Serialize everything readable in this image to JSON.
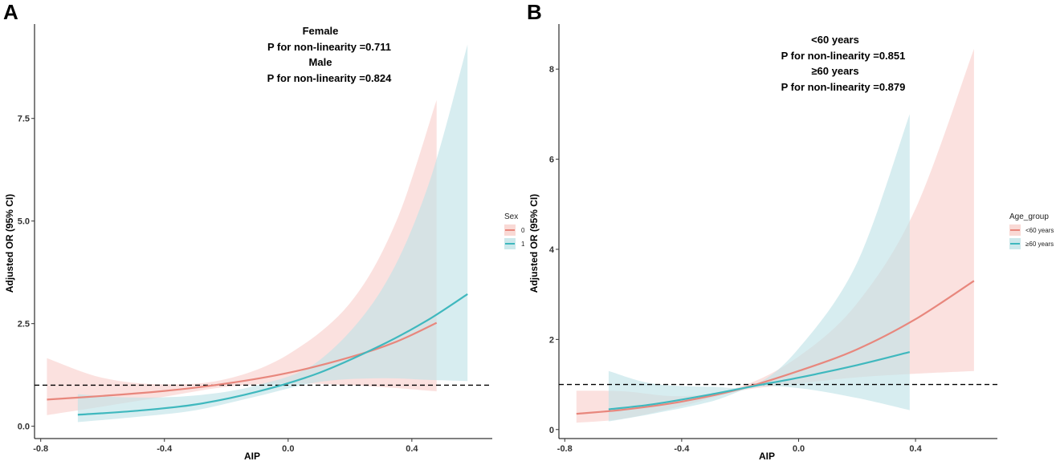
{
  "chart_data": [
    {
      "panel": "A",
      "type": "line",
      "title": "",
      "xlabel": "AIP",
      "ylabel": "Adjusted OR (95% CI)",
      "xlim": [
        -0.82,
        0.66
      ],
      "ylim": [
        -0.3,
        9.8
      ],
      "xticks": [
        -0.8,
        -0.4,
        0.0,
        0.4
      ],
      "xtick_labels": [
        "-0.8",
        "-0.4",
        "0.0",
        "0.4"
      ],
      "yticks": [
        0.0,
        2.5,
        5.0,
        7.5
      ],
      "ytick_labels": [
        "0.0",
        "2.5",
        "5.0",
        "7.5"
      ],
      "reference_line": 1,
      "grid": false,
      "annotations": [
        "Female",
        "P for non-linearity =0.711",
        "Male",
        "P for non-linearity =0.824"
      ],
      "legend": {
        "title": "Sex",
        "position": "right",
        "entries": [
          "0",
          "1"
        ]
      },
      "series": [
        {
          "name": "0",
          "color": "#E8877D",
          "fill": "#F8CFCB",
          "x": [
            -0.78,
            -0.6,
            -0.4,
            -0.2,
            0.0,
            0.2,
            0.35,
            0.48
          ],
          "y": [
            0.65,
            0.74,
            0.86,
            1.04,
            1.3,
            1.68,
            2.06,
            2.52
          ],
          "lower": [
            0.27,
            0.48,
            0.72,
            0.96,
            1.05,
            1.0,
            0.93,
            0.85
          ],
          "upper": [
            1.66,
            1.18,
            1.02,
            1.15,
            1.75,
            3.0,
            5.0,
            7.95
          ]
        },
        {
          "name": "1",
          "color": "#3FB8BE",
          "fill": "#BFE2E6",
          "x": [
            -0.68,
            -0.5,
            -0.3,
            -0.1,
            0.1,
            0.3,
            0.45,
            0.58
          ],
          "y": [
            0.28,
            0.37,
            0.53,
            0.84,
            1.3,
            1.97,
            2.58,
            3.22
          ],
          "lower": [
            0.1,
            0.22,
            0.39,
            0.73,
            1.08,
            1.17,
            1.13,
            1.1
          ],
          "upper": [
            0.78,
            0.7,
            0.75,
            1.0,
            1.6,
            3.3,
            5.8,
            9.3
          ]
        }
      ]
    },
    {
      "panel": "B",
      "type": "line",
      "title": "",
      "xlabel": "AIP",
      "ylabel": "Adjusted OR (95% CI)",
      "xlim": [
        -0.82,
        0.68
      ],
      "ylim": [
        -0.2,
        9.0
      ],
      "xticks": [
        -0.8,
        -0.4,
        0.0,
        0.4
      ],
      "xtick_labels": [
        "-0.8",
        "-0.4",
        "0.0",
        "0.4"
      ],
      "yticks": [
        0,
        2,
        4,
        6,
        8
      ],
      "ytick_labels": [
        "0",
        "2",
        "4",
        "6",
        "8"
      ],
      "reference_line": 1,
      "grid": false,
      "annotations": [
        "<60 years",
        "P for non-linearity =0.851",
        "≥60 years",
        "P for non-linearity =0.879"
      ],
      "legend": {
        "title": "Age_group",
        "position": "right",
        "entries": [
          "<60 years",
          "≥60 years"
        ]
      },
      "series": [
        {
          "name": "<60 years",
          "color": "#E8877D",
          "fill": "#F8CFCB",
          "x": [
            -0.76,
            -0.6,
            -0.4,
            -0.2,
            0.0,
            0.2,
            0.4,
            0.6
          ],
          "y": [
            0.35,
            0.44,
            0.62,
            0.9,
            1.3,
            1.78,
            2.45,
            3.3
          ],
          "lower": [
            0.15,
            0.24,
            0.52,
            0.86,
            1.02,
            1.16,
            1.24,
            1.3
          ],
          "upper": [
            0.86,
            0.85,
            0.74,
            0.95,
            1.62,
            2.8,
            4.9,
            8.45
          ]
        },
        {
          "name": "≥60 years",
          "color": "#3FB8BE",
          "fill": "#BFE2E6",
          "x": [
            -0.65,
            -0.5,
            -0.3,
            -0.15,
            0.0,
            0.2,
            0.38
          ],
          "y": [
            0.45,
            0.56,
            0.78,
            0.97,
            1.15,
            1.43,
            1.72
          ],
          "lower": [
            0.18,
            0.35,
            0.62,
            0.94,
            0.92,
            0.7,
            0.43
          ],
          "upper": [
            1.3,
            1.02,
            0.95,
            1.0,
            1.8,
            3.7,
            7.0
          ]
        }
      ]
    }
  ]
}
